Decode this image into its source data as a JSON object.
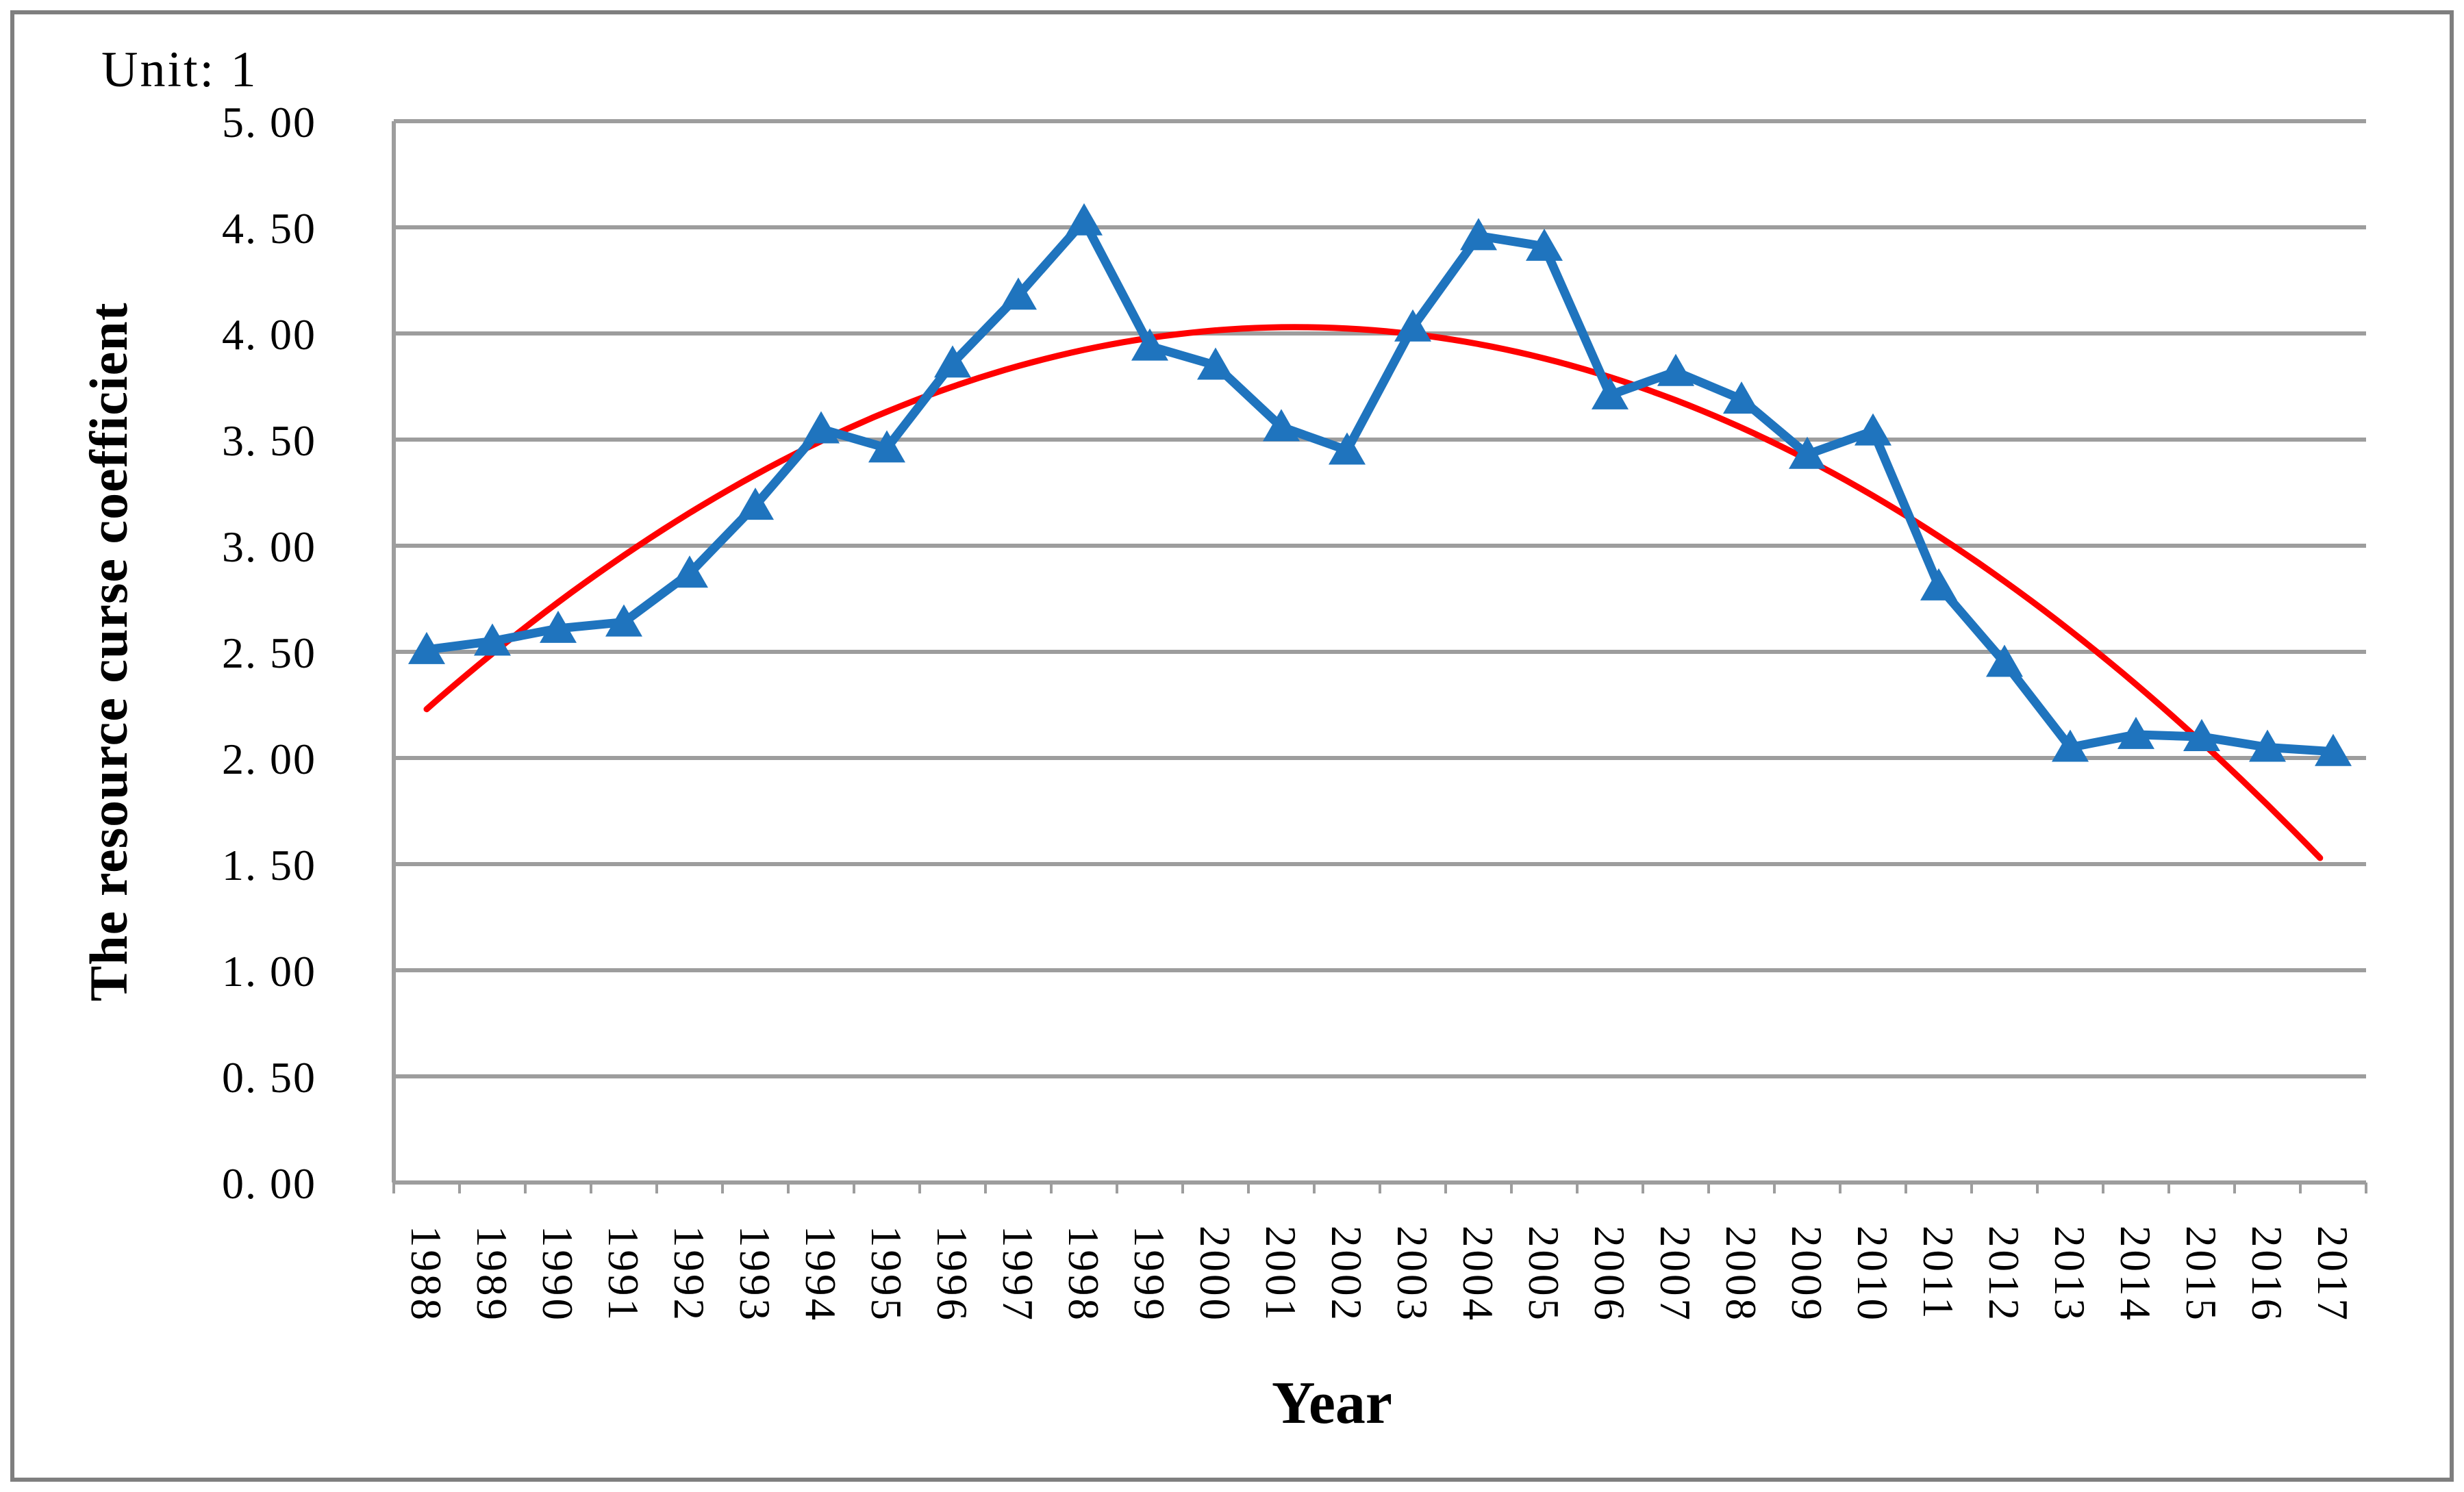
{
  "chart_data": {
    "type": "line",
    "annotation": "Unit: 1",
    "xlabel": "Year",
    "ylabel": "The resource curse coefficient",
    "x": [
      1988,
      1989,
      1990,
      1991,
      1992,
      1993,
      1994,
      1995,
      1996,
      1997,
      1998,
      1999,
      2000,
      2001,
      2002,
      2003,
      2004,
      2005,
      2006,
      2007,
      2008,
      2009,
      2010,
      2011,
      2012,
      2013,
      2014,
      2015,
      2016,
      2017
    ],
    "series": [
      {
        "name": "resource curse coefficient",
        "marker": "triangle-up",
        "color": "#1F74BE",
        "values": [
          2.51,
          2.55,
          2.61,
          2.64,
          2.87,
          3.19,
          3.55,
          3.46,
          3.86,
          4.18,
          4.53,
          3.94,
          3.85,
          3.56,
          3.45,
          4.03,
          4.46,
          4.41,
          3.71,
          3.82,
          3.69,
          3.43,
          3.54,
          2.81,
          2.45,
          2.05,
          2.11,
          2.1,
          2.05,
          2.03
        ]
      }
    ],
    "trendline": {
      "name": "polynomial trend (order 2)",
      "color": "#FF0000",
      "c0": 2.23,
      "c1": 0.2723,
      "c2": -0.0103,
      "t_note": "t = year - 1988, value = c0 + c1*t + c2*t^2",
      "t_start": 0,
      "t_end": 28.8,
      "start_value": 2.23,
      "peak_value": 4.03,
      "peak_year": 2001.2,
      "end_value": 1.53
    },
    "ylim": [
      0,
      5
    ],
    "ytick_values": [
      0,
      0.5,
      1,
      1.5,
      2,
      2.5,
      3,
      3.5,
      4,
      4.5,
      5
    ],
    "ytick_labels": [
      "0. 00",
      "0. 50",
      "1. 00",
      "1. 50",
      "2. 00",
      "2. 50",
      "3. 00",
      "3. 50",
      "4. 00",
      "4. 50",
      "5. 00"
    ],
    "grid": "horizontal",
    "legend_position": "none"
  },
  "colors": {
    "series_blue": "#1F74BE",
    "trend_red": "#FF0000",
    "gridline_gray": "#9D9D9D",
    "frame_gray": "#7F7F7F",
    "text_black": "#000000"
  }
}
